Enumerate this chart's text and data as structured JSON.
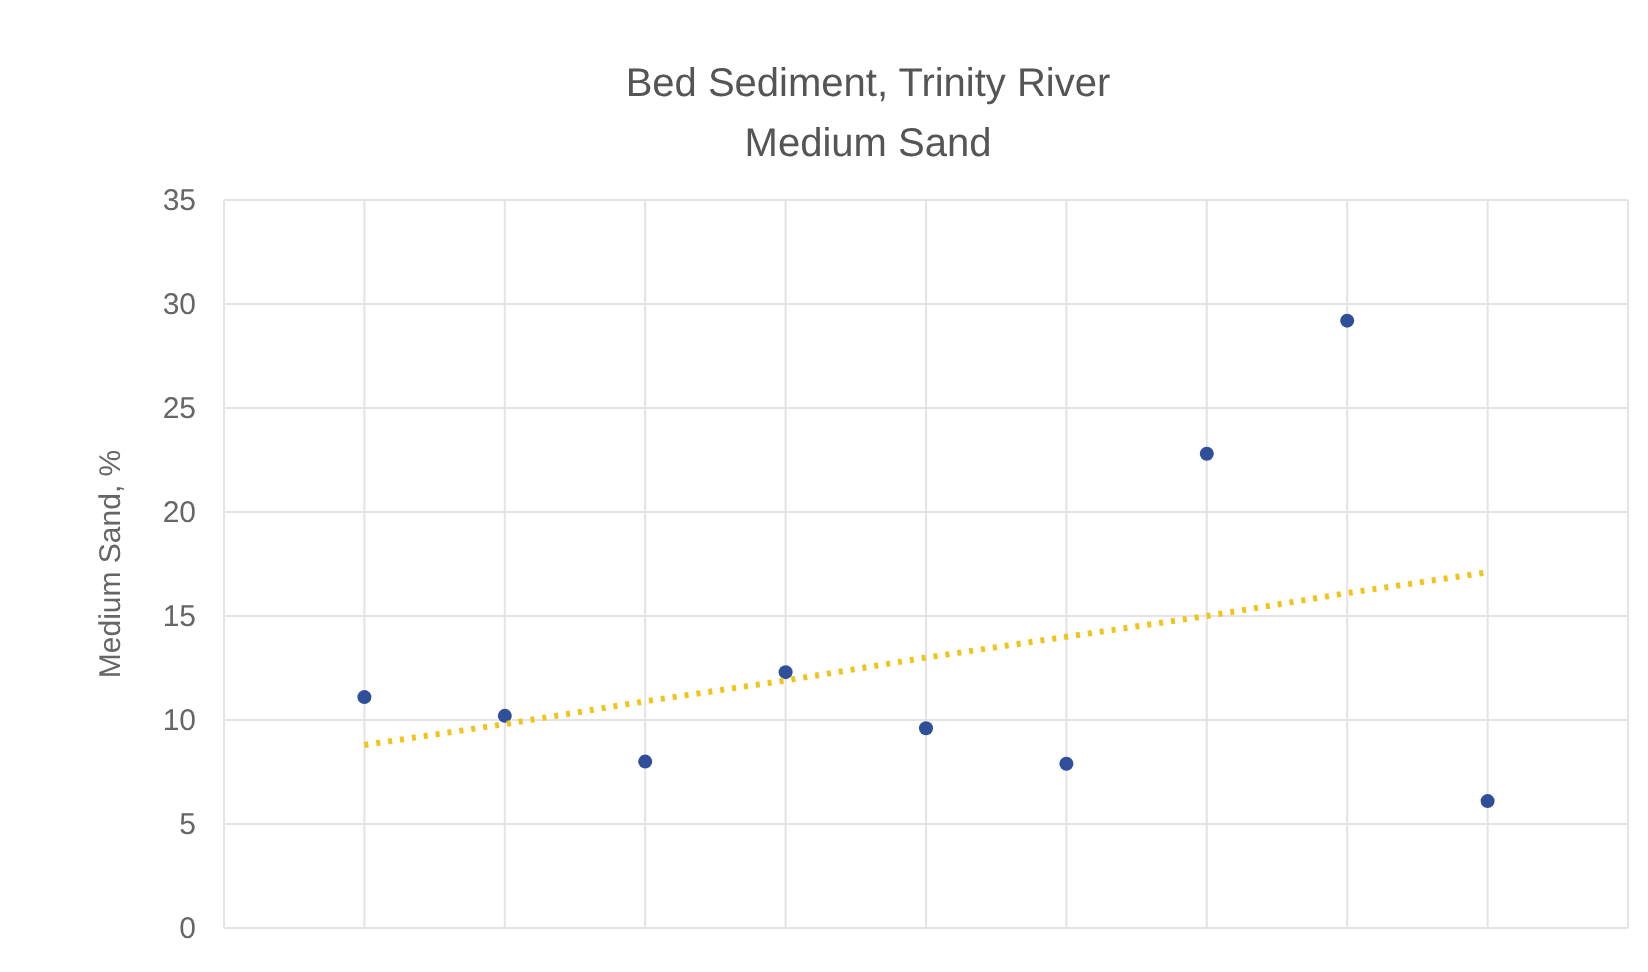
{
  "chart_data": {
    "type": "scatter",
    "title": "Bed Sediment, Trinity River",
    "subtitle": "Medium Sand",
    "ylabel": "Medium Sand, %",
    "categories": [
      null,
      null,
      null,
      null,
      null,
      null,
      null,
      null,
      null
    ],
    "series": [
      {
        "color": "#2f4f9a",
        "marker": "circle",
        "values": [
          11.1,
          10.2,
          8.0,
          12.3,
          9.6,
          7.9,
          22.8,
          29.2,
          6.1
        ]
      },
      {
        "type": "line",
        "color": "#f0c419",
        "line_style": "dotted",
        "marker": "none",
        "values": [
          8.8,
          9.8,
          10.9,
          11.9,
          13.0,
          14.0,
          15.0,
          16.1,
          17.1
        ]
      }
    ],
    "ylim": [
      0,
      35
    ],
    "yticks": [
      0,
      5,
      10,
      15,
      20,
      25,
      30,
      35
    ],
    "grid": true,
    "tick_labels": "y"
  }
}
